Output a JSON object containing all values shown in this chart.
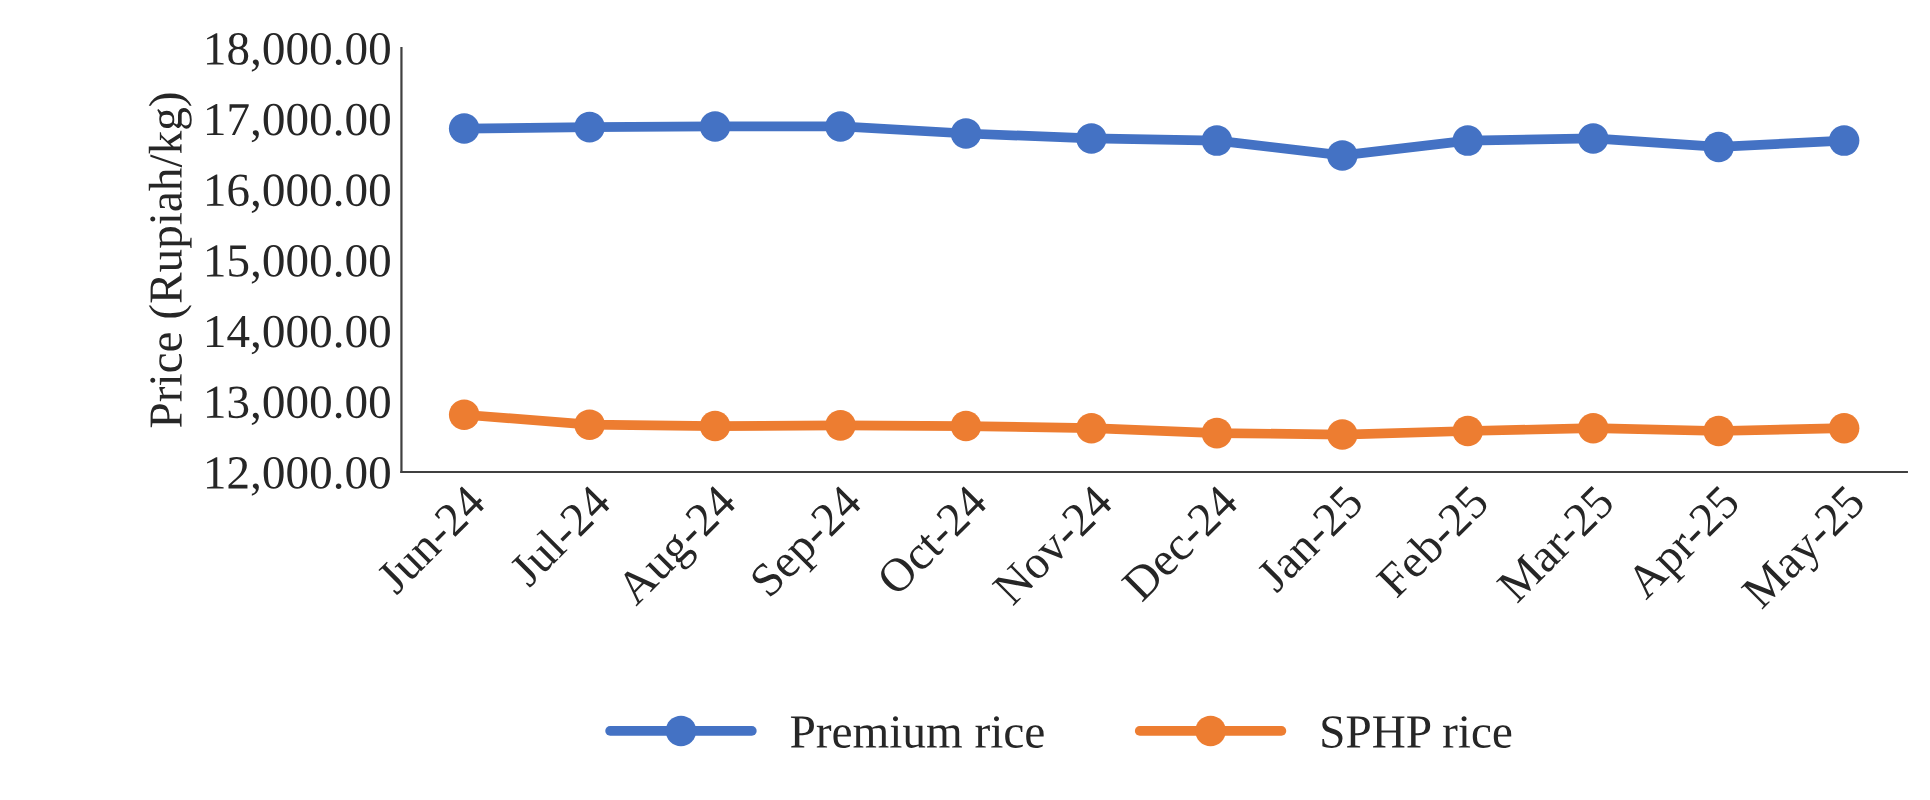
{
  "chart_data": {
    "type": "line",
    "ylabel": "Price (Rupiah/kg)",
    "categories": [
      "Jun-24",
      "Jul-24",
      "Aug-24",
      "Sep-24",
      "Oct-24",
      "Nov-24",
      "Dec-24",
      "Jan-25",
      "Feb-25",
      "Mar-25",
      "Apr-25",
      "May-25"
    ],
    "series": [
      {
        "name": "Premium rice",
        "color": "#4472c4",
        "values": [
          16860,
          16880,
          16890,
          16890,
          16790,
          16720,
          16690,
          16480,
          16690,
          16720,
          16600,
          16690
        ]
      },
      {
        "name": "SPHP rice",
        "color": "#ed7d31",
        "values": [
          12810,
          12670,
          12650,
          12660,
          12650,
          12620,
          12550,
          12530,
          12580,
          12620,
          12580,
          12620
        ]
      }
    ],
    "ylim": [
      12000,
      18000
    ],
    "yticks": [
      {
        "value": 12000,
        "label": "12,000.00"
      },
      {
        "value": 13000,
        "label": "13,000.00"
      },
      {
        "value": 14000,
        "label": "14,000.00"
      },
      {
        "value": 15000,
        "label": "15,000.00"
      },
      {
        "value": 16000,
        "label": "16,000.00"
      },
      {
        "value": 17000,
        "label": "17,000.00"
      },
      {
        "value": 18000,
        "label": "18,000.00"
      }
    ],
    "marker": "circle",
    "line_style": "solid",
    "grid": false,
    "legend": "bottom"
  }
}
